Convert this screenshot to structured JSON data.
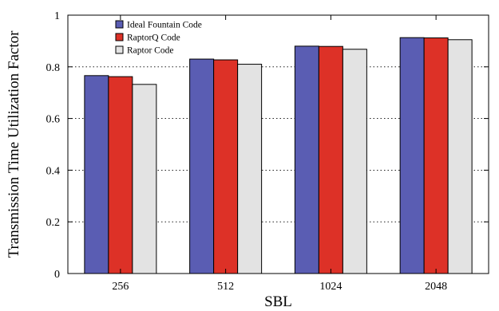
{
  "chart_data": {
    "type": "bar",
    "title": "",
    "xlabel": "SBL",
    "ylabel": "Transmission Time Utilization Factor",
    "categories": [
      "256",
      "512",
      "1024",
      "2048"
    ],
    "series": [
      {
        "name": "Ideal Fountain Code",
        "color": "#5a5db3",
        "values": [
          0.766,
          0.83,
          0.88,
          0.913
        ]
      },
      {
        "name": "RaptorQ Code",
        "color": "#dd3127",
        "values": [
          0.762,
          0.827,
          0.879,
          0.912
        ]
      },
      {
        "name": "Raptor Code",
        "color": "#e3e3e3",
        "values": [
          0.732,
          0.81,
          0.868,
          0.905
        ]
      }
    ],
    "ylim": [
      0,
      1
    ],
    "yticks": [
      0,
      0.2,
      0.4,
      0.6,
      0.8,
      1
    ],
    "ytick_labels": [
      "0",
      "0.2",
      "0.4",
      "0.6",
      "0.8",
      "1"
    ],
    "grid": true,
    "legend_position": "top-left"
  }
}
